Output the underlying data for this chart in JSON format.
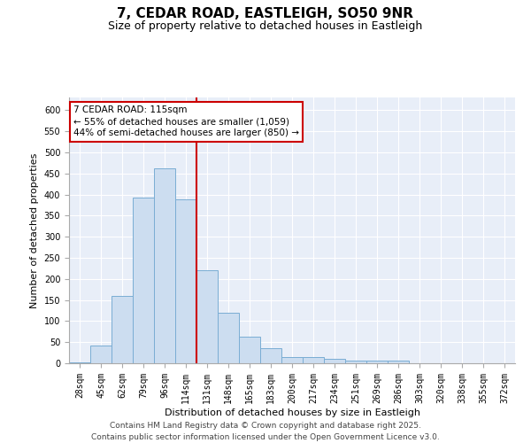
{
  "title": "7, CEDAR ROAD, EASTLEIGH, SO50 9NR",
  "subtitle": "Size of property relative to detached houses in Eastleigh",
  "xlabel": "Distribution of detached houses by size in Eastleigh",
  "ylabel": "Number of detached properties",
  "categories": [
    "28sqm",
    "45sqm",
    "62sqm",
    "79sqm",
    "96sqm",
    "114sqm",
    "131sqm",
    "148sqm",
    "165sqm",
    "183sqm",
    "200sqm",
    "217sqm",
    "234sqm",
    "251sqm",
    "269sqm",
    "286sqm",
    "303sqm",
    "320sqm",
    "338sqm",
    "355sqm",
    "372sqm"
  ],
  "values": [
    3,
    43,
    160,
    393,
    463,
    388,
    220,
    120,
    62,
    35,
    14,
    15,
    10,
    6,
    6,
    7,
    0,
    0,
    0,
    0,
    0
  ],
  "bar_color": "#ccddf0",
  "bar_edge_color": "#7aadd4",
  "vline_label": "7 CEDAR ROAD: 115sqm",
  "annotation_line1": "← 55% of detached houses are smaller (1,059)",
  "annotation_line2": "44% of semi-detached houses are larger (850) →",
  "annotation_box_color": "#ffffff",
  "annotation_box_edge_color": "#cc0000",
  "vline_color": "#cc0000",
  "vline_index": 5,
  "ylim": [
    0,
    630
  ],
  "yticks": [
    0,
    50,
    100,
    150,
    200,
    250,
    300,
    350,
    400,
    450,
    500,
    550,
    600
  ],
  "background_color": "#e8eef8",
  "grid_color": "#ffffff",
  "footer_line1": "Contains HM Land Registry data © Crown copyright and database right 2025.",
  "footer_line2": "Contains public sector information licensed under the Open Government Licence v3.0.",
  "title_fontsize": 11,
  "subtitle_fontsize": 9,
  "axis_label_fontsize": 8,
  "tick_fontsize": 7,
  "annotation_fontsize": 7.5,
  "footer_fontsize": 6.5
}
